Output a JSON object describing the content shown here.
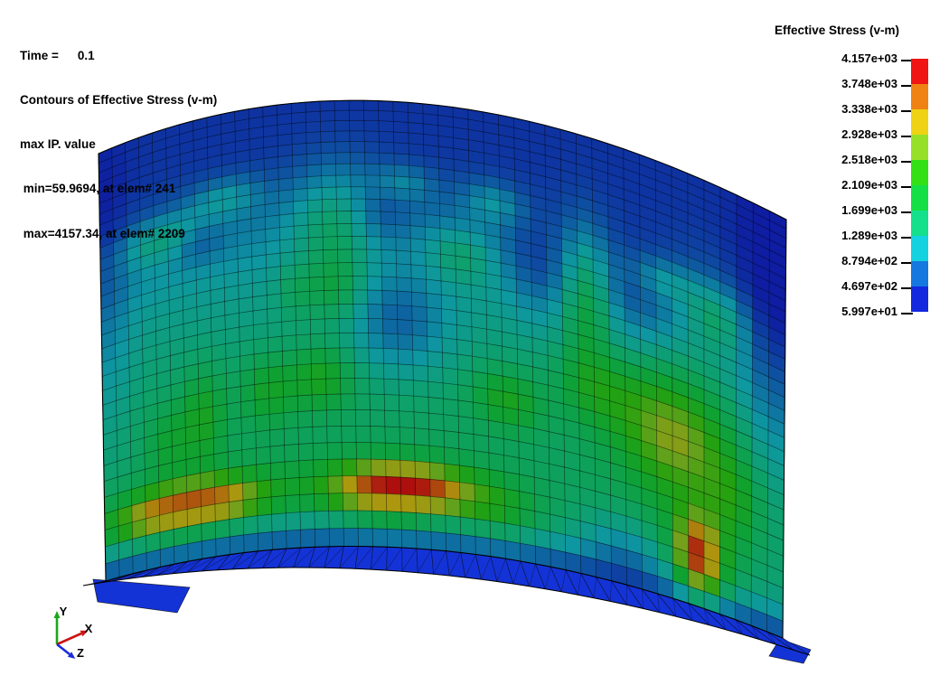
{
  "annotation": {
    "time_label": "Time =",
    "time_value": "0.1",
    "contour_line": "Contours of Effective Stress (v-m)",
    "mode_line": "max IP. value",
    "min_line": " min=59.9694, at elem# 241",
    "max_line": " max=4157.34, at elem# 2209"
  },
  "legend": {
    "title": "Effective Stress (v-m)",
    "entries": [
      {
        "label": "4.157e+03"
      },
      {
        "label": "3.748e+03"
      },
      {
        "label": "3.338e+03"
      },
      {
        "label": "2.928e+03"
      },
      {
        "label": "2.518e+03"
      },
      {
        "label": "2.109e+03"
      },
      {
        "label": "1.699e+03"
      },
      {
        "label": "1.289e+03"
      },
      {
        "label": "8.794e+02"
      },
      {
        "label": "4.697e+02"
      },
      {
        "label": "5.997e+01"
      }
    ],
    "bar_colors_top_to_bottom": [
      "#f01414",
      "#f08214",
      "#f0d214",
      "#96e028",
      "#32e014",
      "#14e046",
      "#14e08c",
      "#14d2e0",
      "#1478e0",
      "#1428e0"
    ]
  },
  "triad": {
    "x_label": "X",
    "y_label": "Y",
    "z_label": "Z",
    "x_color": "#cc1414",
    "y_color": "#18a818",
    "z_color": "#1c2cd8"
  },
  "chart_data": {
    "type": "heatmap",
    "title": "Contours of Effective Stress (v-m)",
    "value_mode": "max IP. value",
    "time": 0.1,
    "min_value": 59.9694,
    "min_elem": 241,
    "max_value": 4157.34,
    "max_elem": 2209,
    "legend_title": "Effective Stress (v-m)",
    "levels": [
      4157,
      3748,
      3338,
      2928,
      2518,
      2109,
      1699,
      1289,
      879.4,
      469.7,
      59.97
    ],
    "palette_low_to_high": [
      "#1428e0",
      "#1478e0",
      "#14d2e0",
      "#14e08c",
      "#14e046",
      "#32e014",
      "#96e028",
      "#f0d214",
      "#f08214",
      "#f01414"
    ],
    "geometry": {
      "cols": 46,
      "rows": 32,
      "shade": 0.72,
      "top_edge": {
        "a": [
          109,
          170
        ],
        "c": [
          446,
          23
        ],
        "b": [
          870,
          243
        ]
      },
      "bottom_edge": {
        "a": [
          117,
          643
        ],
        "c": [
          463,
          542
        ],
        "b": [
          866,
          706
        ]
      },
      "flange_color": "#1433d6",
      "flange_left_wedge": [
        [
          103,
          641
        ],
        [
          210,
          650
        ],
        [
          196,
          678
        ],
        [
          108,
          666
        ]
      ],
      "flange_right_tip": [
        [
          863,
          707
        ],
        [
          897,
          719
        ],
        [
          889,
          734
        ],
        [
          851,
          726
        ]
      ]
    },
    "field": {
      "value_range": [
        59.97,
        4157.34
      ],
      "base_stops": [
        [
          0,
          230
        ],
        [
          0.1,
          255
        ],
        [
          0.18,
          380
        ],
        [
          0.28,
          750
        ],
        [
          0.4,
          1100
        ],
        [
          0.52,
          1300
        ],
        [
          0.65,
          1450
        ],
        [
          0.8,
          1480
        ],
        [
          0.9,
          1380
        ],
        [
          0.96,
          850
        ],
        [
          1,
          300
        ]
      ],
      "bumps": [
        [
          0.1,
          0.25,
          0.05,
          0.035,
          700
        ],
        [
          0.2,
          0.19,
          0.04,
          0.03,
          650
        ],
        [
          0.155,
          0.28,
          0.025,
          0.03,
          -450
        ],
        [
          0.37,
          0.26,
          0.05,
          0.09,
          750
        ],
        [
          0.365,
          0.42,
          0.025,
          0.05,
          600
        ],
        [
          0.305,
          0.42,
          0.018,
          0.04,
          400
        ],
        [
          0.47,
          0.18,
          0.03,
          0.025,
          550
        ],
        [
          0.55,
          0.33,
          0.03,
          0.04,
          550
        ],
        [
          0.6,
          0.2,
          0.03,
          0.03,
          620
        ],
        [
          0.73,
          0.38,
          0.02,
          0.12,
          800
        ],
        [
          0.835,
          0.27,
          0.03,
          0.03,
          580
        ],
        [
          0.91,
          0.31,
          0.025,
          0.05,
          650
        ],
        [
          0.46,
          0.5,
          0.05,
          0.08,
          -700
        ],
        [
          0.43,
          0.26,
          0.03,
          0.05,
          -450
        ],
        [
          0.66,
          0.33,
          0.03,
          0.08,
          -500
        ],
        [
          0.8,
          0.33,
          0.035,
          0.09,
          -450
        ],
        [
          0.985,
          0.3,
          0.03,
          0.28,
          -650
        ],
        [
          0.01,
          0.4,
          0.025,
          0.25,
          -400
        ],
        [
          0.34,
          0.62,
          0.03,
          0.045,
          800
        ],
        [
          0.615,
          0.64,
          0.03,
          0.04,
          800
        ],
        [
          0.85,
          0.62,
          0.055,
          0.1,
          1250
        ],
        [
          0.85,
          0.63,
          0.03,
          0.05,
          400
        ],
        [
          0.158,
          0.68,
          0.02,
          0.07,
          750
        ],
        [
          0.26,
          0.64,
          0.025,
          0.05,
          650
        ],
        [
          0.105,
          0.72,
          0.02,
          0.05,
          500
        ],
        [
          0.44,
          0.9,
          0.05,
          0.035,
          700
        ],
        [
          0.6,
          0.9,
          0.04,
          0.04,
          550
        ],
        [
          0.75,
          0.57,
          0.04,
          0.05,
          600
        ],
        [
          0.93,
          0.72,
          0.025,
          0.06,
          600
        ],
        [
          0.78,
          0.92,
          0.04,
          0.05,
          -500
        ],
        [
          0.135,
          0.875,
          0.062,
          0.022,
          3800
        ],
        [
          0.135,
          0.875,
          0.1,
          0.05,
          800
        ],
        [
          0.46,
          0.865,
          0.06,
          0.02,
          3900
        ],
        [
          0.46,
          0.865,
          0.095,
          0.05,
          850
        ],
        [
          0.885,
          0.88,
          0.014,
          0.05,
          3600
        ],
        [
          0.885,
          0.88,
          0.035,
          0.09,
          700
        ]
      ]
    }
  }
}
